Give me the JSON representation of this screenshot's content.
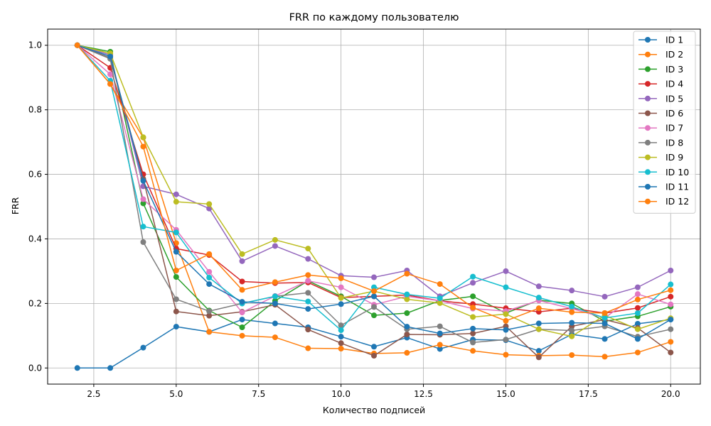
{
  "chart_data": {
    "type": "line",
    "title": "FRR по каждому пользователю",
    "xlabel": "Количество подписей",
    "ylabel": "FRR",
    "xlim": [
      1.1,
      20.9
    ],
    "ylim": [
      -0.05,
      1.05
    ],
    "xticks": [
      2.5,
      5.0,
      7.5,
      10.0,
      12.5,
      15.0,
      17.5,
      20.0
    ],
    "xtick_labels": [
      "2.5",
      "5.0",
      "7.5",
      "10.0",
      "12.5",
      "15.0",
      "17.5",
      "20.0"
    ],
    "yticks": [
      0.0,
      0.2,
      0.4,
      0.6,
      0.8,
      1.0
    ],
    "ytick_labels": [
      "0.0",
      "0.2",
      "0.4",
      "0.6",
      "0.8",
      "1.0"
    ],
    "grid": true,
    "legend_position": "top-right",
    "x": [
      2,
      3,
      4,
      5,
      6,
      7,
      8,
      9,
      10,
      11,
      12,
      13,
      14,
      15,
      16,
      17,
      18,
      19,
      20
    ],
    "series": [
      {
        "name": "ID 1",
        "color": "#1f77b4",
        "values": [
          0.0,
          0.0,
          0.063,
          0.128,
          0.112,
          0.15,
          0.138,
          0.126,
          0.097,
          0.066,
          0.094,
          0.059,
          0.088,
          0.086,
          0.053,
          0.104,
          0.09,
          0.137,
          0.15
        ]
      },
      {
        "name": "ID 2",
        "color": "#ff7f0e",
        "values": [
          1.0,
          0.88,
          0.714,
          0.387,
          0.112,
          0.1,
          0.095,
          0.061,
          0.06,
          0.045,
          0.047,
          0.072,
          0.053,
          0.041,
          0.038,
          0.04,
          0.035,
          0.048,
          0.081
        ]
      },
      {
        "name": "ID 3",
        "color": "#2ca02c",
        "values": [
          1.0,
          0.98,
          0.51,
          0.282,
          0.178,
          0.126,
          0.208,
          0.27,
          0.222,
          0.163,
          0.17,
          0.209,
          0.222,
          0.17,
          0.21,
          0.2,
          0.145,
          0.16,
          0.19
        ]
      },
      {
        "name": "ID 4",
        "color": "#d62728",
        "values": [
          1.0,
          0.93,
          0.6,
          0.37,
          0.35,
          0.268,
          0.263,
          0.265,
          0.218,
          0.222,
          0.226,
          0.208,
          0.198,
          0.185,
          0.174,
          0.185,
          0.17,
          0.186,
          0.221
        ]
      },
      {
        "name": "ID 5",
        "color": "#9467bd",
        "values": [
          1.0,
          0.97,
          0.563,
          0.538,
          0.494,
          0.331,
          0.378,
          0.338,
          0.286,
          0.281,
          0.302,
          0.222,
          0.264,
          0.3,
          0.253,
          0.24,
          0.221,
          0.25,
          0.302
        ]
      },
      {
        "name": "ID 6",
        "color": "#8c564b",
        "values": [
          1.0,
          0.96,
          0.586,
          0.175,
          0.162,
          0.174,
          0.196,
          0.119,
          0.077,
          0.038,
          0.104,
          0.103,
          0.107,
          0.129,
          0.033,
          0.129,
          0.15,
          0.124,
          0.048
        ]
      },
      {
        "name": "ID 7",
        "color": "#e377c2",
        "values": [
          1.0,
          0.91,
          0.523,
          0.428,
          0.298,
          0.172,
          0.223,
          0.27,
          0.25,
          0.196,
          0.222,
          0.208,
          0.184,
          0.176,
          0.209,
          0.184,
          0.155,
          0.229,
          0.197
        ]
      },
      {
        "name": "ID 8",
        "color": "#7f7f7f",
        "values": [
          1.0,
          0.958,
          0.39,
          0.213,
          0.176,
          0.2,
          0.222,
          0.233,
          0.132,
          0.189,
          0.12,
          0.129,
          0.079,
          0.088,
          0.12,
          0.116,
          0.129,
          0.097,
          0.12
        ]
      },
      {
        "name": "ID 9",
        "color": "#bcbd22",
        "values": [
          1.0,
          0.975,
          0.715,
          0.515,
          0.508,
          0.353,
          0.397,
          0.37,
          0.217,
          0.238,
          0.213,
          0.201,
          0.158,
          0.167,
          0.12,
          0.098,
          0.163,
          0.12,
          0.154
        ]
      },
      {
        "name": "ID 10",
        "color": "#17becf",
        "values": [
          1.0,
          0.89,
          0.438,
          0.42,
          0.28,
          0.2,
          0.222,
          0.206,
          0.117,
          0.25,
          0.228,
          0.216,
          0.283,
          0.25,
          0.218,
          0.19,
          0.155,
          0.17,
          0.259
        ]
      },
      {
        "name": "ID 11",
        "color": "#1f77b4",
        "values": [
          1.0,
          0.965,
          0.58,
          0.36,
          0.26,
          0.205,
          0.2,
          0.183,
          0.198,
          0.222,
          0.128,
          0.107,
          0.122,
          0.118,
          0.138,
          0.14,
          0.138,
          0.09,
          0.15
        ]
      },
      {
        "name": "ID 12",
        "color": "#ff7f0e",
        "values": [
          1.0,
          0.88,
          0.686,
          0.302,
          0.353,
          0.242,
          0.266,
          0.288,
          0.278,
          0.238,
          0.292,
          0.26,
          0.187,
          0.146,
          0.185,
          0.173,
          0.17,
          0.212,
          0.241
        ]
      }
    ]
  }
}
